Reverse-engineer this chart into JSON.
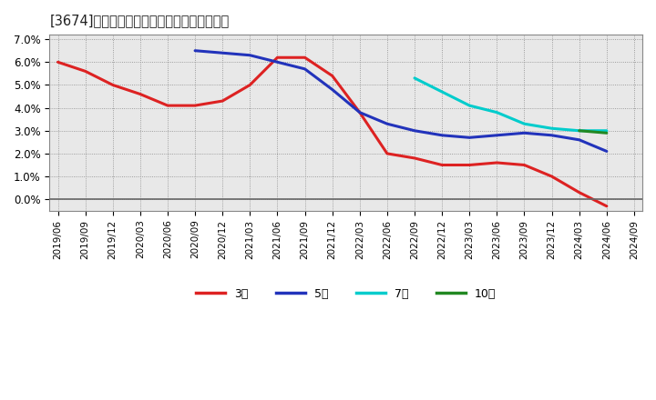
{
  "title": "[3674]　当期純利益マージンの平均値の推移",
  "background_color": "#ffffff",
  "plot_bg_color": "#e8e8e8",
  "grid_color": "#aaaaaa",
  "ylim": [
    -0.005,
    0.072
  ],
  "series": {
    "3年": {
      "color": "#dd2222",
      "data": [
        [
          "2019/06",
          0.06
        ],
        [
          "2019/09",
          0.056
        ],
        [
          "2019/12",
          0.05
        ],
        [
          "2020/03",
          0.046
        ],
        [
          "2020/06",
          0.041
        ],
        [
          "2020/09",
          0.041
        ],
        [
          "2020/12",
          0.043
        ],
        [
          "2021/03",
          0.05
        ],
        [
          "2021/06",
          0.062
        ],
        [
          "2021/09",
          0.062
        ],
        [
          "2021/12",
          0.054
        ],
        [
          "2022/03",
          0.038
        ],
        [
          "2022/06",
          0.02
        ],
        [
          "2022/09",
          0.018
        ],
        [
          "2022/12",
          0.015
        ],
        [
          "2023/03",
          0.015
        ],
        [
          "2023/06",
          0.016
        ],
        [
          "2023/09",
          0.015
        ],
        [
          "2023/12",
          0.01
        ],
        [
          "2024/03",
          0.003
        ],
        [
          "2024/06",
          -0.003
        ]
      ]
    },
    "5年": {
      "color": "#2233bb",
      "data": [
        [
          "2020/09",
          0.065
        ],
        [
          "2020/12",
          0.064
        ],
        [
          "2021/03",
          0.063
        ],
        [
          "2021/06",
          0.06
        ],
        [
          "2021/09",
          0.057
        ],
        [
          "2021/12",
          0.048
        ],
        [
          "2022/03",
          0.038
        ],
        [
          "2022/06",
          0.033
        ],
        [
          "2022/09",
          0.03
        ],
        [
          "2022/12",
          0.028
        ],
        [
          "2023/03",
          0.027
        ],
        [
          "2023/06",
          0.028
        ],
        [
          "2023/09",
          0.029
        ],
        [
          "2023/12",
          0.028
        ],
        [
          "2024/03",
          0.026
        ],
        [
          "2024/06",
          0.021
        ]
      ]
    },
    "7年": {
      "color": "#00cccc",
      "data": [
        [
          "2022/09",
          0.053
        ],
        [
          "2022/12",
          0.047
        ],
        [
          "2023/03",
          0.041
        ],
        [
          "2023/06",
          0.038
        ],
        [
          "2023/09",
          0.033
        ],
        [
          "2023/12",
          0.031
        ],
        [
          "2024/03",
          0.03
        ],
        [
          "2024/06",
          0.03
        ]
      ]
    },
    "10年": {
      "color": "#228822",
      "data": [
        [
          "2024/03",
          0.03
        ],
        [
          "2024/06",
          0.029
        ]
      ]
    }
  },
  "legend_labels": [
    "3年",
    "5年",
    "7年",
    "10年"
  ],
  "legend_colors": [
    "#dd2222",
    "#2233bb",
    "#00cccc",
    "#228822"
  ],
  "x_tick_labels": [
    "2019/06",
    "2019/09",
    "2019/12",
    "2020/03",
    "2020/06",
    "2020/09",
    "2020/12",
    "2021/03",
    "2021/06",
    "2021/09",
    "2021/12",
    "2022/03",
    "2022/06",
    "2022/09",
    "2022/12",
    "2023/03",
    "2023/06",
    "2023/09",
    "2023/12",
    "2024/03",
    "2024/06",
    "2024/09"
  ]
}
